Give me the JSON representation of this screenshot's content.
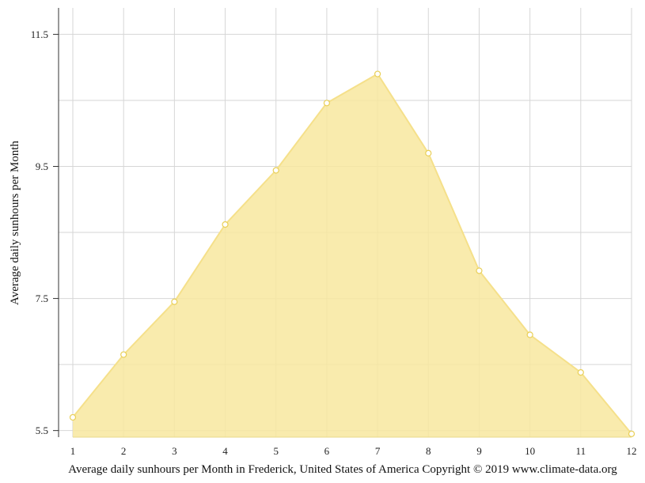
{
  "chart_data": {
    "type": "area",
    "title": "",
    "ylabel": "Average daily sunhours per Month",
    "xlabel": "Average daily sunhours per Month in Frederick, United States of America Copyright © 2019 www.climate-data.org",
    "x": [
      1,
      2,
      3,
      4,
      5,
      6,
      7,
      8,
      9,
      10,
      11,
      12
    ],
    "x_tick_labels": [
      "1",
      "2",
      "3",
      "4",
      "5",
      "6",
      "7",
      "8",
      "9",
      "10",
      "11",
      "12"
    ],
    "y_tick_labels": [
      "11.5",
      "9.5",
      "7.5",
      "5.5"
    ],
    "y_ticks": [
      11.5,
      9.5,
      7.5,
      5.5
    ],
    "series": [
      {
        "values": [
          5.7,
          6.65,
          7.45,
          8.62,
          9.44,
          10.46,
          10.9,
          9.7,
          7.92,
          6.95,
          6.38,
          5.45
        ]
      }
    ],
    "ylim": [
      5.4,
      11.9
    ],
    "xlim": [
      1,
      12
    ],
    "grid": true,
    "legend": "none",
    "colors": {
      "fill": "#f8e79f",
      "line": "#f5e08a",
      "marker_fill": "#ffffff",
      "marker_stroke": "#e9cf57",
      "grid": "#d6d6d6",
      "axis": "#333333"
    }
  }
}
